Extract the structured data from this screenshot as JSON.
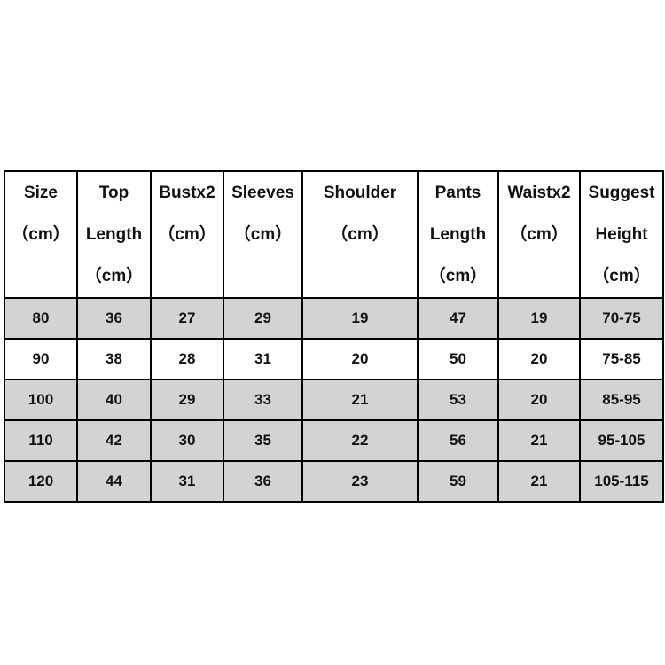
{
  "table": {
    "header": [
      [
        "Size",
        "（cm）"
      ],
      [
        "Top",
        "Length",
        "（cm）"
      ],
      [
        "Bustx2",
        "（cm）"
      ],
      [
        "Sleeves",
        "（cm）"
      ],
      [
        "Shoulder",
        "（cm）"
      ],
      [
        "Pants",
        "Length",
        "（cm）"
      ],
      [
        "Waistx2",
        "（cm）"
      ],
      [
        "Suggest",
        "Height",
        "（cm）"
      ]
    ],
    "rows": [
      [
        "80",
        "36",
        "27",
        "29",
        "19",
        "47",
        "19",
        "70-75"
      ],
      [
        "90",
        "38",
        "28",
        "31",
        "20",
        "50",
        "20",
        "75-85"
      ],
      [
        "100",
        "40",
        "29",
        "33",
        "21",
        "53",
        "20",
        "85-95"
      ],
      [
        "110",
        "42",
        "30",
        "35",
        "22",
        "56",
        "21",
        "95-105"
      ],
      [
        "120",
        "44",
        "31",
        "36",
        "23",
        "59",
        "21",
        "105-115"
      ]
    ]
  }
}
